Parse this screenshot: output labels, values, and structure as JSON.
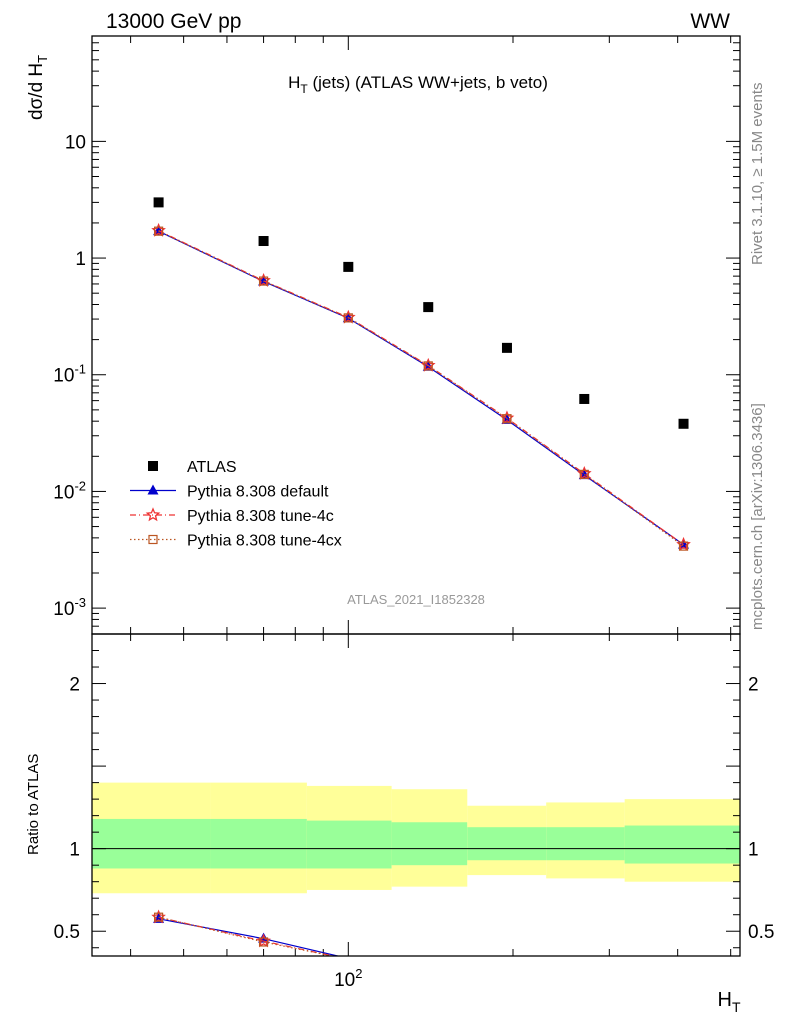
{
  "header": {
    "energy_label": "13000 GeV pp",
    "process_label": "WW"
  },
  "side_labels": {
    "rivet": "Rivet 3.1.10, ≥ 1.5M events",
    "mcplots": "mcplots.cern.ch [arXiv:1306.3436]"
  },
  "chart_data": [
    {
      "type": "scatter",
      "panel": "main",
      "title": "H_T (jets) (ATLAS WW+jets, b veto)",
      "ylabel": "dσ/d H_T",
      "watermark": "ATLAS_2021_I1852328",
      "y_scale": "log",
      "ylim": [
        0.0006,
        80
      ],
      "x_scale": "log",
      "xlim": [
        34,
        520
      ],
      "y_ticks": [
        {
          "value": 10,
          "label": "10"
        },
        {
          "value": 1,
          "label": "1"
        },
        {
          "value": 0.1,
          "label": "10^-1"
        },
        {
          "value": 0.01,
          "label": "10^-2"
        },
        {
          "value": 0.001,
          "label": "10^-3"
        }
      ],
      "legend_position": "bottom-left",
      "x": [
        45,
        70,
        100,
        140,
        195,
        270,
        410
      ],
      "series": [
        {
          "name": "ATLAS",
          "style": "square",
          "color": "#000000",
          "values": [
            3.0,
            1.4,
            0.84,
            0.38,
            0.17,
            0.062,
            0.038
          ]
        },
        {
          "name": "Pythia 8.308 default",
          "style": "solid-triangle",
          "color": "#0000cc",
          "values": [
            1.7,
            0.63,
            0.305,
            0.117,
            0.041,
            0.0138,
            0.0035
          ]
        },
        {
          "name": "Pythia 8.308 tune-4c",
          "style": "dashdot-star",
          "color": "#ee3333",
          "values": [
            1.72,
            0.64,
            0.31,
            0.12,
            0.0425,
            0.0142,
            0.0035
          ]
        },
        {
          "name": "Pythia 8.308 tune-4cx",
          "style": "dotted-opensquare",
          "color": "#bb5522",
          "values": [
            1.7,
            0.635,
            0.307,
            0.119,
            0.042,
            0.014,
            0.0034
          ]
        }
      ]
    },
    {
      "type": "line",
      "panel": "ratio",
      "ylabel": "Ratio to ATLAS",
      "xlabel": "H_T",
      "x_scale": "log",
      "xlim": [
        34,
        520
      ],
      "ylim": [
        0.35,
        2.3
      ],
      "y_ticks": [
        {
          "value": 0.5,
          "label": "0.5"
        },
        {
          "value": 1,
          "label": "1"
        },
        {
          "value": 2,
          "label": "2"
        }
      ],
      "x_ticks": [
        {
          "value": 100,
          "label": "10^2"
        }
      ],
      "reference_line": 1,
      "bands": {
        "bin_edges": [
          34,
          56,
          84,
          120,
          165,
          230,
          320,
          520
        ],
        "inner_color": "#99ff99",
        "outer_color": "#ffff99",
        "inner_low": [
          0.88,
          0.88,
          0.88,
          0.9,
          0.93,
          0.93,
          0.91,
          0.91
        ],
        "inner_high": [
          1.18,
          1.18,
          1.17,
          1.16,
          1.13,
          1.13,
          1.14,
          1.15
        ],
        "outer_low": [
          0.73,
          0.73,
          0.75,
          0.77,
          0.84,
          0.82,
          0.8,
          0.79
        ],
        "outer_high": [
          1.4,
          1.4,
          1.38,
          1.36,
          1.26,
          1.28,
          1.3,
          1.34
        ]
      },
      "x": [
        45,
        70,
        100
      ],
      "series": [
        {
          "name": "Pythia 8.308 default",
          "color": "#0000cc",
          "values": [
            0.575,
            0.455,
            0.335
          ]
        },
        {
          "name": "Pythia 8.308 tune-4c",
          "color": "#ee3333",
          "values": [
            0.585,
            0.44,
            0.33
          ]
        },
        {
          "name": "Pythia 8.308 tune-4cx",
          "color": "#bb5522",
          "values": [
            0.585,
            0.435,
            0.33
          ]
        }
      ]
    }
  ]
}
